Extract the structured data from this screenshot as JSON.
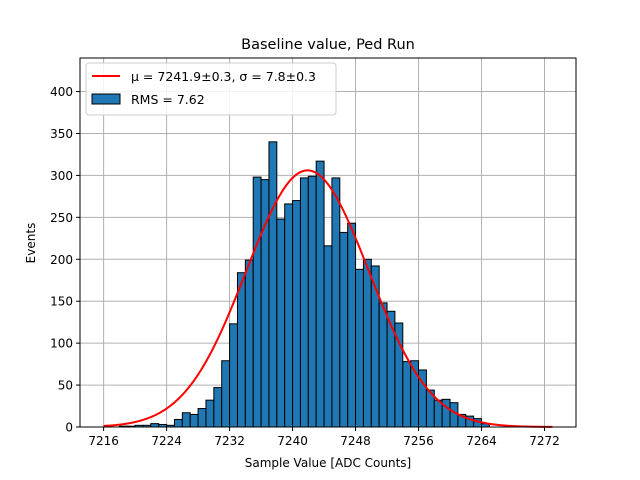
{
  "chart_data": {
    "type": "bar",
    "title": "Baseline value, Ped Run",
    "xlabel": "Sample Value [ADC Counts]",
    "ylabel": "Events",
    "xlim": [
      7213,
      7276
    ],
    "ylim": [
      0,
      440
    ],
    "xticks": [
      7216,
      7224,
      7232,
      7240,
      7248,
      7256,
      7264,
      7272
    ],
    "yticks": [
      0,
      50,
      100,
      150,
      200,
      250,
      300,
      350,
      400
    ],
    "grid": true,
    "legend_position": "top-left",
    "colors": {
      "bars": "#1f77b4",
      "bar_edge": "#000000",
      "fit": "#ff0000",
      "grid": "#b0b0b0"
    },
    "series": [
      {
        "name": "RMS = 7.62",
        "kind": "histogram",
        "bin_width": 1,
        "bin_starts": [
          7218,
          7219,
          7220,
          7221,
          7222,
          7223,
          7224,
          7225,
          7226,
          7227,
          7228,
          7229,
          7230,
          7231,
          7232,
          7233,
          7234,
          7235,
          7236,
          7237,
          7238,
          7239,
          7240,
          7241,
          7242,
          7243,
          7244,
          7245,
          7246,
          7247,
          7248,
          7249,
          7250,
          7251,
          7252,
          7253,
          7254,
          7255,
          7256,
          7257,
          7258,
          7259,
          7260,
          7261,
          7262,
          7263,
          7264
        ],
        "counts": [
          1,
          1,
          2,
          2,
          4,
          3,
          2,
          9,
          17,
          15,
          22,
          32,
          47,
          79,
          123,
          184,
          199,
          298,
          295,
          340,
          248,
          266,
          270,
          297,
          299,
          317,
          216,
          297,
          232,
          243,
          188,
          200,
          192,
          148,
          138,
          124,
          78,
          79,
          68,
          44,
          32,
          33,
          29,
          15,
          13,
          10,
          4
        ]
      },
      {
        "name": "μ = 7241.9±0.3, σ = 7.8±0.3",
        "kind": "gaussian_fit",
        "mu": 7241.9,
        "sigma": 7.8,
        "amplitude": 306,
        "x_range": [
          7216,
          7273
        ]
      }
    ],
    "legend": [
      {
        "label": "μ = 7241.9±0.3, σ = 7.8±0.3",
        "symbol": "line"
      },
      {
        "label": "RMS = 7.62",
        "symbol": "patch"
      }
    ]
  }
}
